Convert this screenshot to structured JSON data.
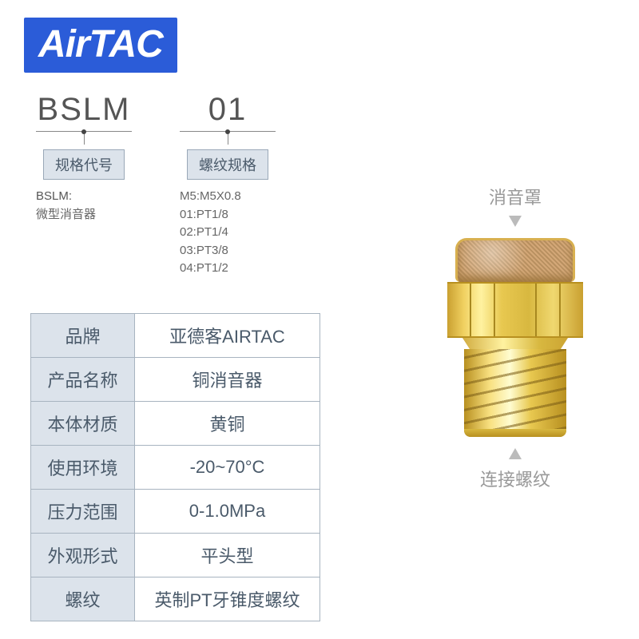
{
  "logo": "AirTAC",
  "model": {
    "segments": [
      {
        "code": "BSLM",
        "label": "规格代号",
        "desc_head": "BSLM:",
        "desc_lines": [
          "微型消音器"
        ]
      },
      {
        "code": "01",
        "label": "螺纹规格",
        "desc_head": "",
        "desc_lines": [
          "M5:M5X0.8",
          "01:PT1/8",
          "02:PT1/4",
          "03:PT3/8",
          "04:PT1/2"
        ]
      }
    ]
  },
  "specs": {
    "rows": [
      {
        "k": "品牌",
        "v": "亚德客AIRTAC"
      },
      {
        "k": "产品名称",
        "v": "铜消音器"
      },
      {
        "k": "本体材质",
        "v": "黄铜"
      },
      {
        "k": "使用环境",
        "v": "-20~70°C"
      },
      {
        "k": "压力范围",
        "v": "0-1.0MPa"
      },
      {
        "k": "外观形式",
        "v": "平头型"
      },
      {
        "k": "螺纹",
        "v": "英制PT牙锥度螺纹"
      }
    ]
  },
  "callouts": {
    "top": "消音罩",
    "bottom": "连接螺纹"
  },
  "colors": {
    "brand_bg": "#2b5cd8",
    "label_bg": "#dce3eb",
    "label_border": "#9aa8b8",
    "text_muted": "#4a5a6a",
    "callout_text": "#999999",
    "brass_light": "#f0d870",
    "brass_dark": "#c9a030"
  }
}
